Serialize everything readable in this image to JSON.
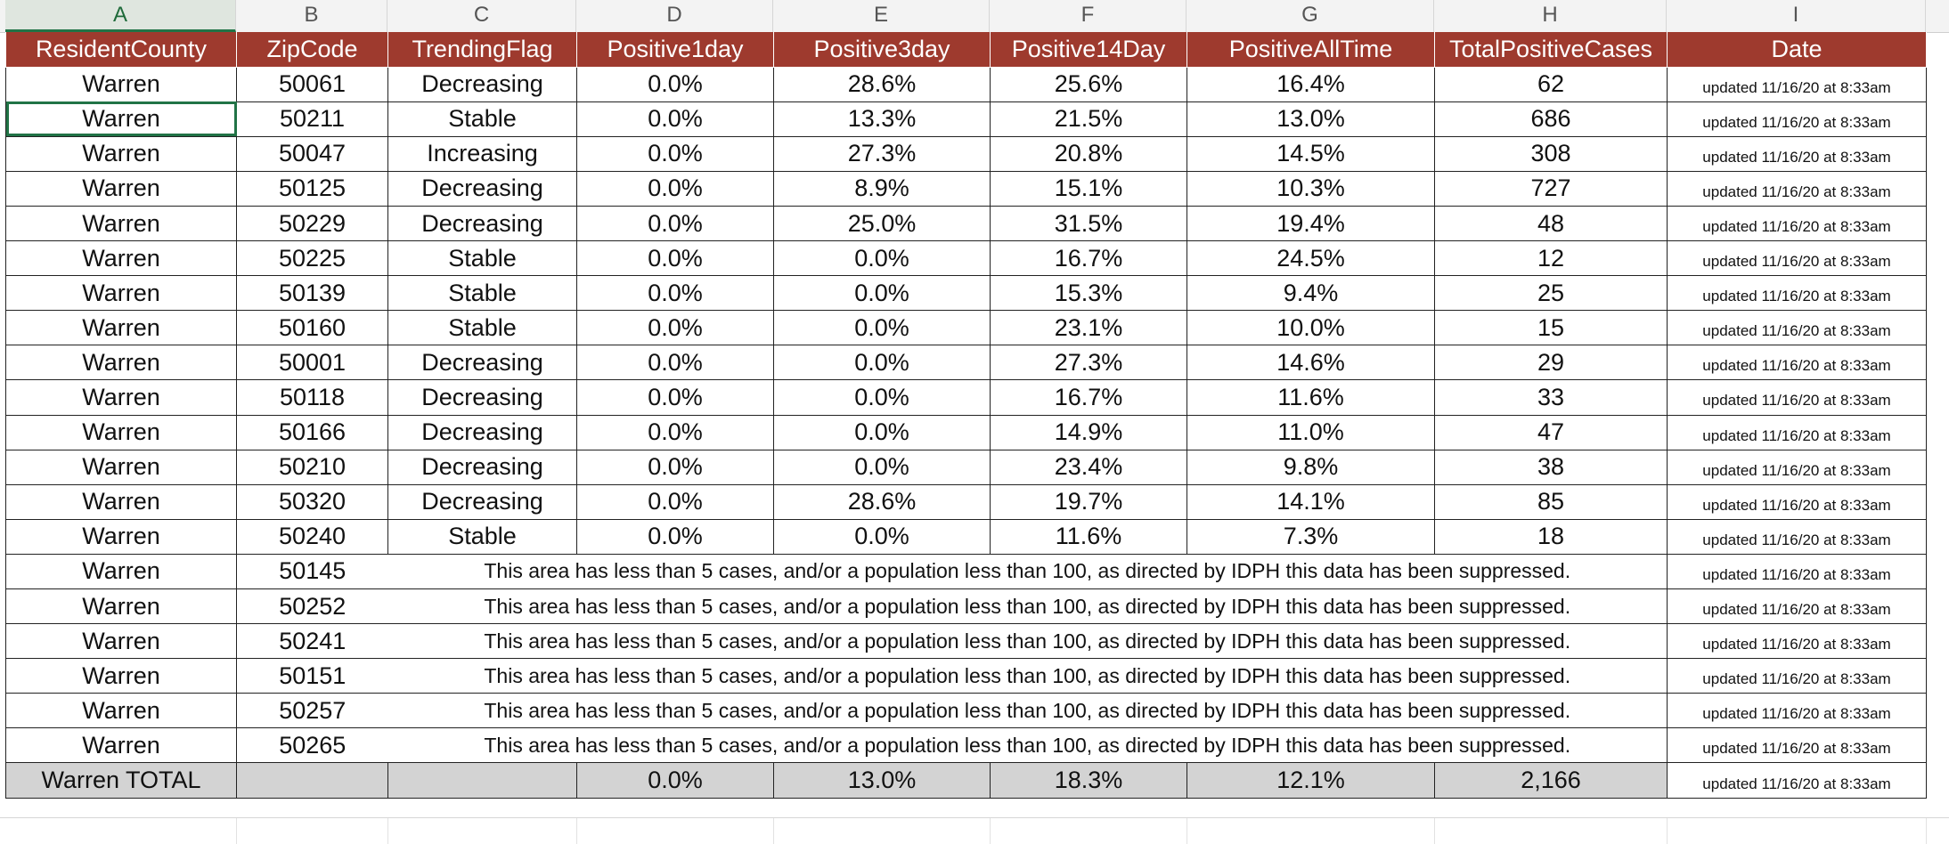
{
  "columns": [
    "A",
    "B",
    "C",
    "D",
    "E",
    "F",
    "G",
    "H",
    "I"
  ],
  "selected_column": "A",
  "header": [
    "ResidentCounty",
    "ZipCode",
    "TrendingFlag",
    "Positive1day",
    "Positive3day",
    "Positive14Day",
    "PositiveAllTime",
    "TotalPositiveCases",
    "Date"
  ],
  "rows": [
    [
      "Warren",
      "50061",
      "Decreasing",
      "0.0%",
      "28.6%",
      "25.6%",
      "16.4%",
      "62",
      "updated 11/16/20 at 8:33am"
    ],
    [
      "Warren",
      "50211",
      "Stable",
      "0.0%",
      "13.3%",
      "21.5%",
      "13.0%",
      "686",
      "updated 11/16/20 at 8:33am"
    ],
    [
      "Warren",
      "50047",
      "Increasing",
      "0.0%",
      "27.3%",
      "20.8%",
      "14.5%",
      "308",
      "updated 11/16/20 at 8:33am"
    ],
    [
      "Warren",
      "50125",
      "Decreasing",
      "0.0%",
      "8.9%",
      "15.1%",
      "10.3%",
      "727",
      "updated 11/16/20 at 8:33am"
    ],
    [
      "Warren",
      "50229",
      "Decreasing",
      "0.0%",
      "25.0%",
      "31.5%",
      "19.4%",
      "48",
      "updated 11/16/20 at 8:33am"
    ],
    [
      "Warren",
      "50225",
      "Stable",
      "0.0%",
      "0.0%",
      "16.7%",
      "24.5%",
      "12",
      "updated 11/16/20 at 8:33am"
    ],
    [
      "Warren",
      "50139",
      "Stable",
      "0.0%",
      "0.0%",
      "15.3%",
      "9.4%",
      "25",
      "updated 11/16/20 at 8:33am"
    ],
    [
      "Warren",
      "50160",
      "Stable",
      "0.0%",
      "0.0%",
      "23.1%",
      "10.0%",
      "15",
      "updated 11/16/20 at 8:33am"
    ],
    [
      "Warren",
      "50001",
      "Decreasing",
      "0.0%",
      "0.0%",
      "27.3%",
      "14.6%",
      "29",
      "updated 11/16/20 at 8:33am"
    ],
    [
      "Warren",
      "50118",
      "Decreasing",
      "0.0%",
      "0.0%",
      "16.7%",
      "11.6%",
      "33",
      "updated 11/16/20 at 8:33am"
    ],
    [
      "Warren",
      "50166",
      "Decreasing",
      "0.0%",
      "0.0%",
      "14.9%",
      "11.0%",
      "47",
      "updated 11/16/20 at 8:33am"
    ],
    [
      "Warren",
      "50210",
      "Decreasing",
      "0.0%",
      "0.0%",
      "23.4%",
      "9.8%",
      "38",
      "updated 11/16/20 at 8:33am"
    ],
    [
      "Warren",
      "50320",
      "Decreasing",
      "0.0%",
      "28.6%",
      "19.7%",
      "14.1%",
      "85",
      "updated 11/16/20 at 8:33am"
    ],
    [
      "Warren",
      "50240",
      "Stable",
      "0.0%",
      "0.0%",
      "11.6%",
      "7.3%",
      "18",
      "updated 11/16/20 at 8:33am"
    ]
  ],
  "suppressed_rows": [
    [
      "Warren",
      "50145",
      "This area has less than 5 cases, and/or a population less than 100, as directed by IDPH this data has been suppressed.",
      "updated 11/16/20 at 8:33am"
    ],
    [
      "Warren",
      "50252",
      "This area has less than 5 cases, and/or a population less than 100, as directed by IDPH this data has been suppressed.",
      "updated 11/16/20 at 8:33am"
    ],
    [
      "Warren",
      "50241",
      "This area has less than 5 cases, and/or a population less than 100, as directed by IDPH this data has been suppressed.",
      "updated 11/16/20 at 8:33am"
    ],
    [
      "Warren",
      "50151",
      "This area has less than 5 cases, and/or a population less than 100, as directed by IDPH this data has been suppressed.",
      "updated 11/16/20 at 8:33am"
    ],
    [
      "Warren",
      "50257",
      "This area has less than 5 cases, and/or a population less than 100, as directed by IDPH this data has been suppressed.",
      "updated 11/16/20 at 8:33am"
    ],
    [
      "Warren",
      "50265",
      "This area has less than 5 cases, and/or a population less than 100, as directed by IDPH this data has been suppressed.",
      "updated 11/16/20 at 8:33am"
    ]
  ],
  "total_row": [
    "Warren TOTAL",
    "",
    "",
    "0.0%",
    "13.0%",
    "18.3%",
    "12.1%",
    "2,166",
    "updated 11/16/20 at 8:33am"
  ],
  "selected_cell": "A3",
  "colors": {
    "header_bg": "#9e3a2e",
    "header_text": "#ffffff",
    "total_bg": "#d3d3d3",
    "selection": "#217346"
  }
}
